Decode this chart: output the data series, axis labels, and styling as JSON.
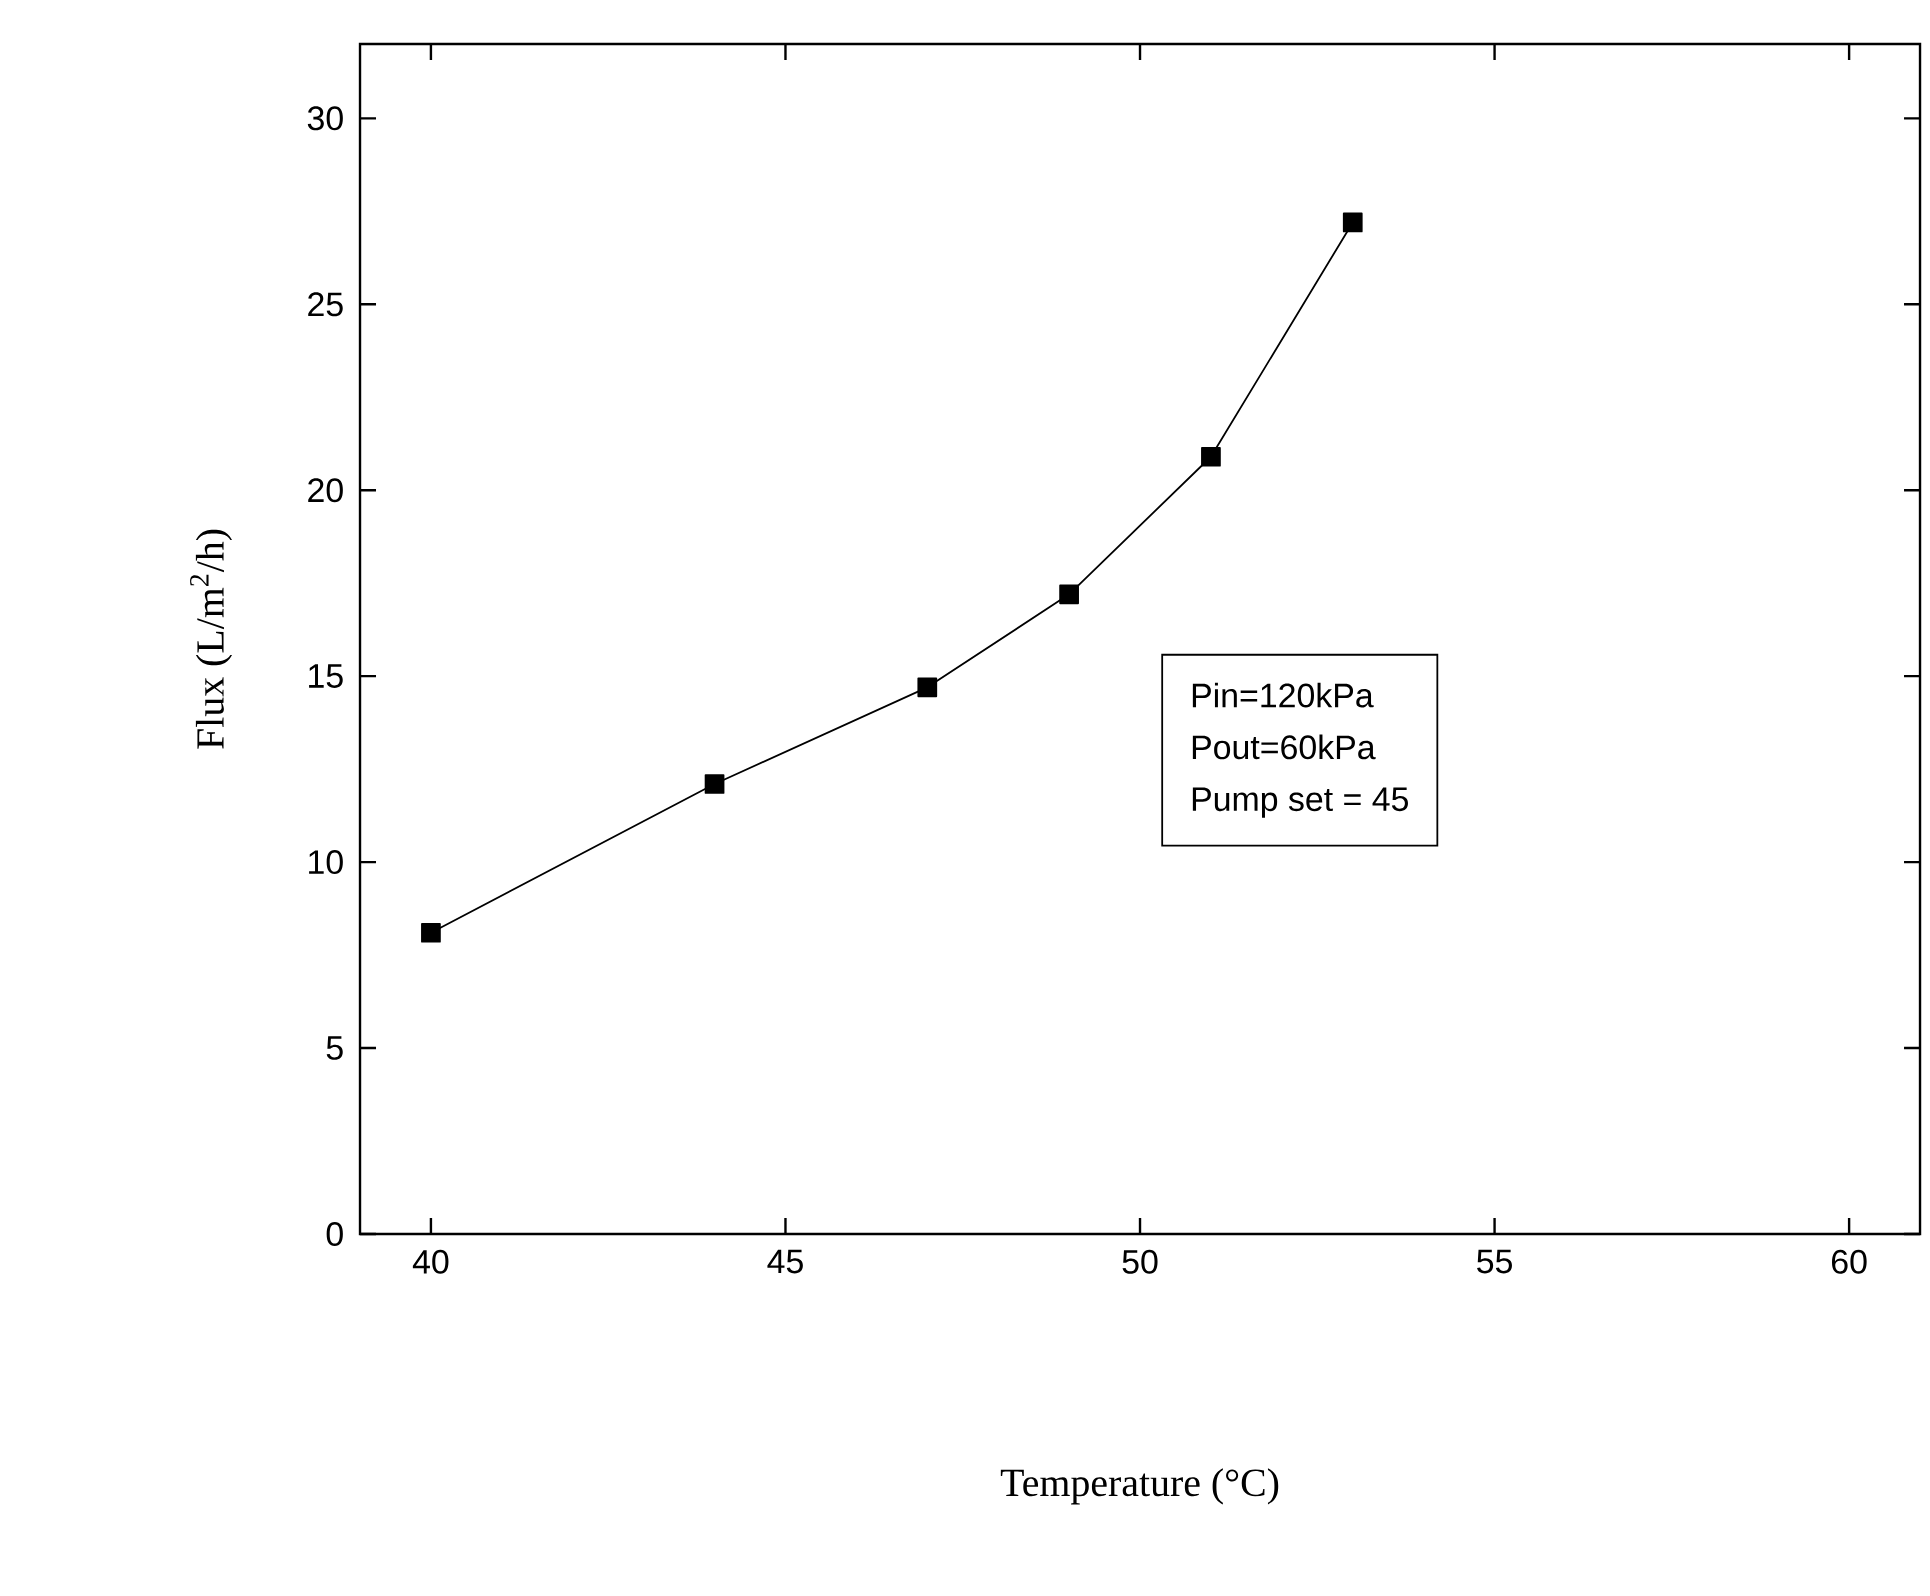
{
  "chart_data": {
    "type": "line",
    "xlabel": "Temperature (°C)",
    "ylabel": "Flux (L/m$^{2}$/h)",
    "x": [
      40,
      44,
      47,
      49,
      51,
      53
    ],
    "values": [
      8.1,
      12.1,
      14.7,
      17.2,
      20.9,
      27.2
    ],
    "color": "#000000",
    "marker": "square",
    "line_style": "solid",
    "xlim": [
      39,
      61
    ],
    "ylim": [
      0,
      32
    ],
    "xticks": [
      40,
      45,
      50,
      55,
      60
    ],
    "yticks": [
      0,
      5,
      10,
      15,
      20,
      25,
      30
    ],
    "annotations": [
      "Pin=120kPa",
      "Pout=60kPa",
      "Pump set = 45"
    ]
  }
}
